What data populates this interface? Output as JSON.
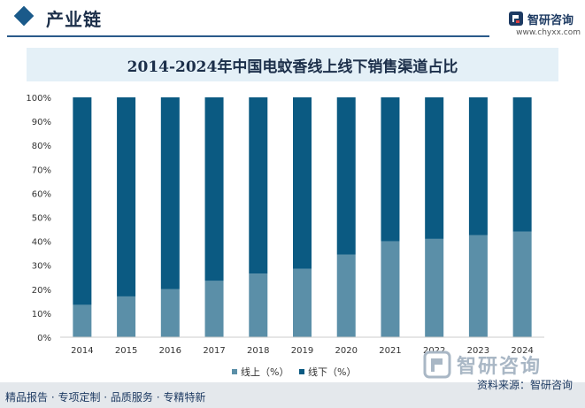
{
  "header": {
    "section_title": "产业链",
    "brand_name": "智研咨询",
    "site_url": "www.chyxx.com"
  },
  "chart_data": {
    "type": "bar",
    "stacked": true,
    "title": "2014-2024年中国电蚊香线上线下销售渠道占比",
    "categories": [
      "2014",
      "2015",
      "2016",
      "2017",
      "2018",
      "2019",
      "2020",
      "2021",
      "2022",
      "2023",
      "2024"
    ],
    "series": [
      {
        "name": "线上（%）",
        "color": "#5b8fa8",
        "values": [
          13.5,
          17,
          20,
          23.5,
          26.5,
          28.5,
          34.5,
          40,
          41,
          42.5,
          44
        ]
      },
      {
        "name": "线下（%）",
        "color": "#0b5a82",
        "values": [
          86.5,
          83,
          80,
          76.5,
          73.5,
          71.5,
          65.5,
          60,
          59,
          57.5,
          56
        ]
      }
    ],
    "yticks": [
      "0%",
      "10%",
      "20%",
      "30%",
      "40%",
      "50%",
      "60%",
      "70%",
      "80%",
      "90%",
      "100%"
    ],
    "ylim": [
      0,
      100
    ],
    "grid": false,
    "legend_position": "bottom"
  },
  "footer": {
    "left_text": "精品报告 · 专项定制 · 品质服务 · 专精特新",
    "source_text": "资料来源：智研咨询"
  },
  "watermark": {
    "name": "智研咨询"
  }
}
